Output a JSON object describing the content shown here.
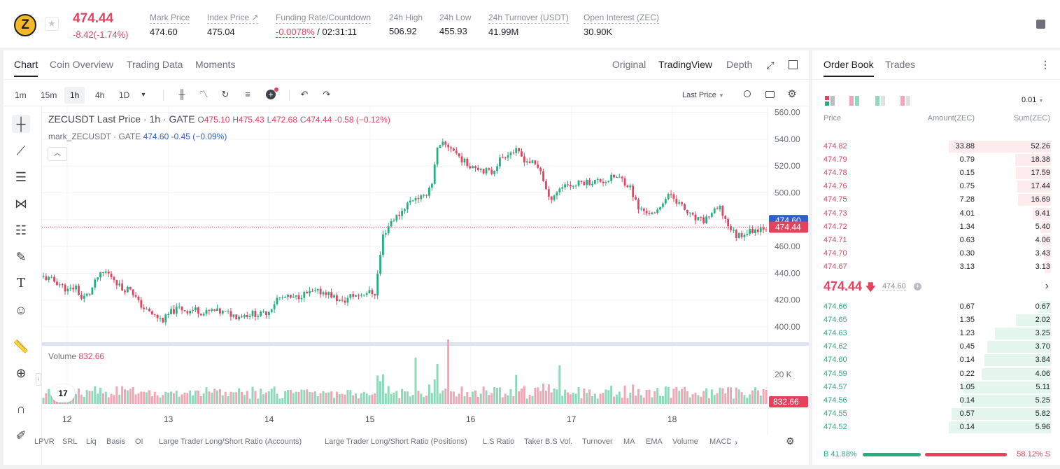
{
  "header": {
    "coin_logo_glyph": "Z",
    "last_price": "474.44",
    "change": "-8.42(-1.74%)",
    "stats": [
      {
        "label": "Mark Price",
        "value": "474.60"
      },
      {
        "label": "Index Price ↗",
        "value": "475.04"
      },
      {
        "label": "Funding Rate/Countdown",
        "value": "-0.0078%",
        "value2": " / 02:31:11"
      },
      {
        "label": "24h High",
        "value": "506.92"
      },
      {
        "label": "24h Low",
        "value": "455.93"
      },
      {
        "label": "24h Turnover (USDT)",
        "value": "41.99M"
      },
      {
        "label": "Open Interest (ZEC)",
        "value": "30.90K"
      }
    ]
  },
  "chart_tabs": [
    "Chart",
    "Coin Overview",
    "Trading Data",
    "Moments"
  ],
  "view_modes": [
    "Original",
    "TradingView",
    "Depth"
  ],
  "timeframes": [
    "1m",
    "15m",
    "1h",
    "4h",
    "1D"
  ],
  "price_type": "Last Price",
  "legend": {
    "title": "ZECUSDT Last Price · 1h · GATE",
    "o": "O",
    "o_val": "475.10",
    "h": "H",
    "h_val": "475.43",
    "l": "L",
    "l_val": "472.68",
    "c": "C",
    "c_val": "474.44",
    "chg": "-0.58 (−0.12%)",
    "mark_name": "mark_ZECUSDT · GATE",
    "mark_val": "474.60",
    "mark_chg": "-0.45 (−0.09%)"
  },
  "volume_legend": {
    "label": "Volume",
    "value": "832.66"
  },
  "indicators": [
    "LPVR",
    "SRL",
    "Liq",
    "Basis",
    "OI",
    "Large Trader Long/Short Ratio (Accounts)",
    "Large Trader Long/Short Ratio (Positions)",
    "L.S Ratio",
    "Taker B.S Vol.",
    "Turnover",
    "MA",
    "EMA",
    "Volume",
    "MACD"
  ],
  "chart_data": {
    "type": "candlestick",
    "symbol": "ZECUSDT",
    "interval": "1h",
    "y_axis_ticks": [
      400,
      420,
      440,
      460,
      480,
      500,
      520,
      540,
      560
    ],
    "y_tick_labels": [
      "400.00",
      "420.00",
      "440.00",
      "460.00",
      "480.00",
      "500.00",
      "520.00",
      "540.00",
      "560.00"
    ],
    "x_tick_labels": [
      "12",
      "13",
      "14",
      "15",
      "16",
      "17",
      "18"
    ],
    "last_price_label": "474.44",
    "mark_price_label": "474.60",
    "volume_axis_label": "20 K",
    "volume_last_label": "832.66",
    "close_path": [
      [
        0,
        437
      ],
      [
        3,
        435
      ],
      [
        6,
        432
      ],
      [
        9,
        427
      ],
      [
        12,
        430
      ],
      [
        14,
        421
      ],
      [
        17,
        425
      ],
      [
        20,
        437
      ],
      [
        23,
        441
      ],
      [
        26,
        436
      ],
      [
        29,
        428
      ],
      [
        32,
        429
      ],
      [
        35,
        418
      ],
      [
        38,
        412
      ],
      [
        41,
        408
      ],
      [
        44,
        405
      ],
      [
        47,
        411
      ],
      [
        50,
        414
      ],
      [
        53,
        412
      ],
      [
        56,
        413
      ],
      [
        59,
        410
      ],
      [
        62,
        412
      ],
      [
        65,
        411
      ],
      [
        68,
        410
      ],
      [
        71,
        408
      ],
      [
        74,
        409
      ],
      [
        77,
        410
      ],
      [
        80,
        409
      ],
      [
        83,
        412
      ],
      [
        86,
        421
      ],
      [
        89,
        422
      ],
      [
        92,
        421
      ],
      [
        95,
        424
      ],
      [
        98,
        425
      ],
      [
        101,
        426
      ],
      [
        104,
        426
      ],
      [
        107,
        422
      ],
      [
        110,
        418
      ],
      [
        113,
        423
      ],
      [
        116,
        424
      ],
      [
        119,
        426
      ],
      [
        122,
        425
      ],
      [
        125,
        468
      ],
      [
        128,
        479
      ],
      [
        131,
        484
      ],
      [
        134,
        492
      ],
      [
        137,
        497
      ],
      [
        140,
        496
      ],
      [
        143,
        508
      ],
      [
        145,
        532
      ],
      [
        147,
        536
      ],
      [
        150,
        534
      ],
      [
        153,
        527
      ],
      [
        156,
        521
      ],
      [
        159,
        520
      ],
      [
        162,
        517
      ],
      [
        165,
        515
      ],
      [
        168,
        525
      ],
      [
        171,
        530
      ],
      [
        174,
        531
      ],
      [
        177,
        525
      ],
      [
        180,
        522
      ],
      [
        183,
        517
      ],
      [
        186,
        495
      ],
      [
        189,
        501
      ],
      [
        192,
        507
      ],
      [
        195,
        505
      ],
      [
        198,
        508
      ],
      [
        201,
        508
      ],
      [
        204,
        509
      ],
      [
        207,
        509
      ],
      [
        210,
        512
      ],
      [
        213,
        510
      ],
      [
        216,
        504
      ],
      [
        219,
        488
      ],
      [
        222,
        486
      ],
      [
        225,
        483
      ],
      [
        228,
        494
      ],
      [
        231,
        499
      ],
      [
        234,
        492
      ],
      [
        237,
        485
      ],
      [
        240,
        480
      ],
      [
        243,
        479
      ],
      [
        246,
        485
      ],
      [
        249,
        488
      ],
      [
        252,
        476
      ],
      [
        255,
        468
      ],
      [
        258,
        470
      ],
      [
        261,
        472
      ],
      [
        264,
        474
      ],
      [
        266,
        474.44
      ]
    ],
    "volume_tallest_bars": [
      {
        "x": 137,
        "relative": 0.72
      },
      {
        "x": 145,
        "relative": 0.62
      },
      {
        "x": 149,
        "relative": 1.0
      },
      {
        "x": 174,
        "relative": 0.45
      },
      {
        "x": 190,
        "relative": 0.6
      }
    ]
  },
  "order_book": {
    "tabs": [
      "Order Book",
      "Trades"
    ],
    "precision": "0.01",
    "headers": {
      "price": "Price",
      "amount": "Amount(ZEC)",
      "sum": "Sum(ZEC)"
    },
    "asks": [
      {
        "price": "474.82",
        "amount": "33.88",
        "sum": "52.26",
        "depth": 1.0
      },
      {
        "price": "474.79",
        "amount": "0.79",
        "sum": "18.38",
        "depth": 0.35
      },
      {
        "price": "474.78",
        "amount": "0.15",
        "sum": "17.59",
        "depth": 0.34
      },
      {
        "price": "474.76",
        "amount": "0.75",
        "sum": "17.44",
        "depth": 0.33
      },
      {
        "price": "474.75",
        "amount": "7.28",
        "sum": "16.69",
        "depth": 0.32
      },
      {
        "price": "474.73",
        "amount": "4.01",
        "sum": "9.41",
        "depth": 0.18
      },
      {
        "price": "474.72",
        "amount": "1.34",
        "sum": "5.40",
        "depth": 0.1
      },
      {
        "price": "474.71",
        "amount": "0.63",
        "sum": "4.06",
        "depth": 0.08
      },
      {
        "price": "474.70",
        "amount": "0.30",
        "sum": "3.43",
        "depth": 0.07
      },
      {
        "price": "474.67",
        "amount": "3.13",
        "sum": "3.13",
        "depth": 0.06
      }
    ],
    "mid_price": "474.44",
    "mark_price": "474.60",
    "bids": [
      {
        "price": "474.66",
        "amount": "0.67",
        "sum": "0.67",
        "depth": 0.11
      },
      {
        "price": "474.65",
        "amount": "1.35",
        "sum": "2.02",
        "depth": 0.34
      },
      {
        "price": "474.63",
        "amount": "1.23",
        "sum": "3.25",
        "depth": 0.55
      },
      {
        "price": "474.62",
        "amount": "0.45",
        "sum": "3.70",
        "depth": 0.62
      },
      {
        "price": "474.60",
        "amount": "0.14",
        "sum": "3.84",
        "depth": 0.65
      },
      {
        "price": "474.59",
        "amount": "0.22",
        "sum": "4.06",
        "depth": 0.68
      },
      {
        "price": "474.57",
        "amount": "1.05",
        "sum": "5.11",
        "depth": 0.86
      },
      {
        "price": "474.56",
        "amount": "0.14",
        "sum": "5.25",
        "depth": 0.88
      },
      {
        "price": "474.55",
        "amount": "0.57",
        "sum": "5.82",
        "depth": 0.97
      },
      {
        "price": "474.52",
        "amount": "0.14",
        "sum": "5.96",
        "depth": 1.0
      }
    ],
    "buy_ratio": "B 41.88%",
    "sell_ratio": "58.12% S",
    "buy_fraction": 0.4188
  },
  "colors": {
    "up": "#22b07d",
    "down": "#e8415e",
    "mark": "#2d5fcf",
    "volume_up": "#8fd9bb",
    "volume_down": "#f2a6b4"
  }
}
